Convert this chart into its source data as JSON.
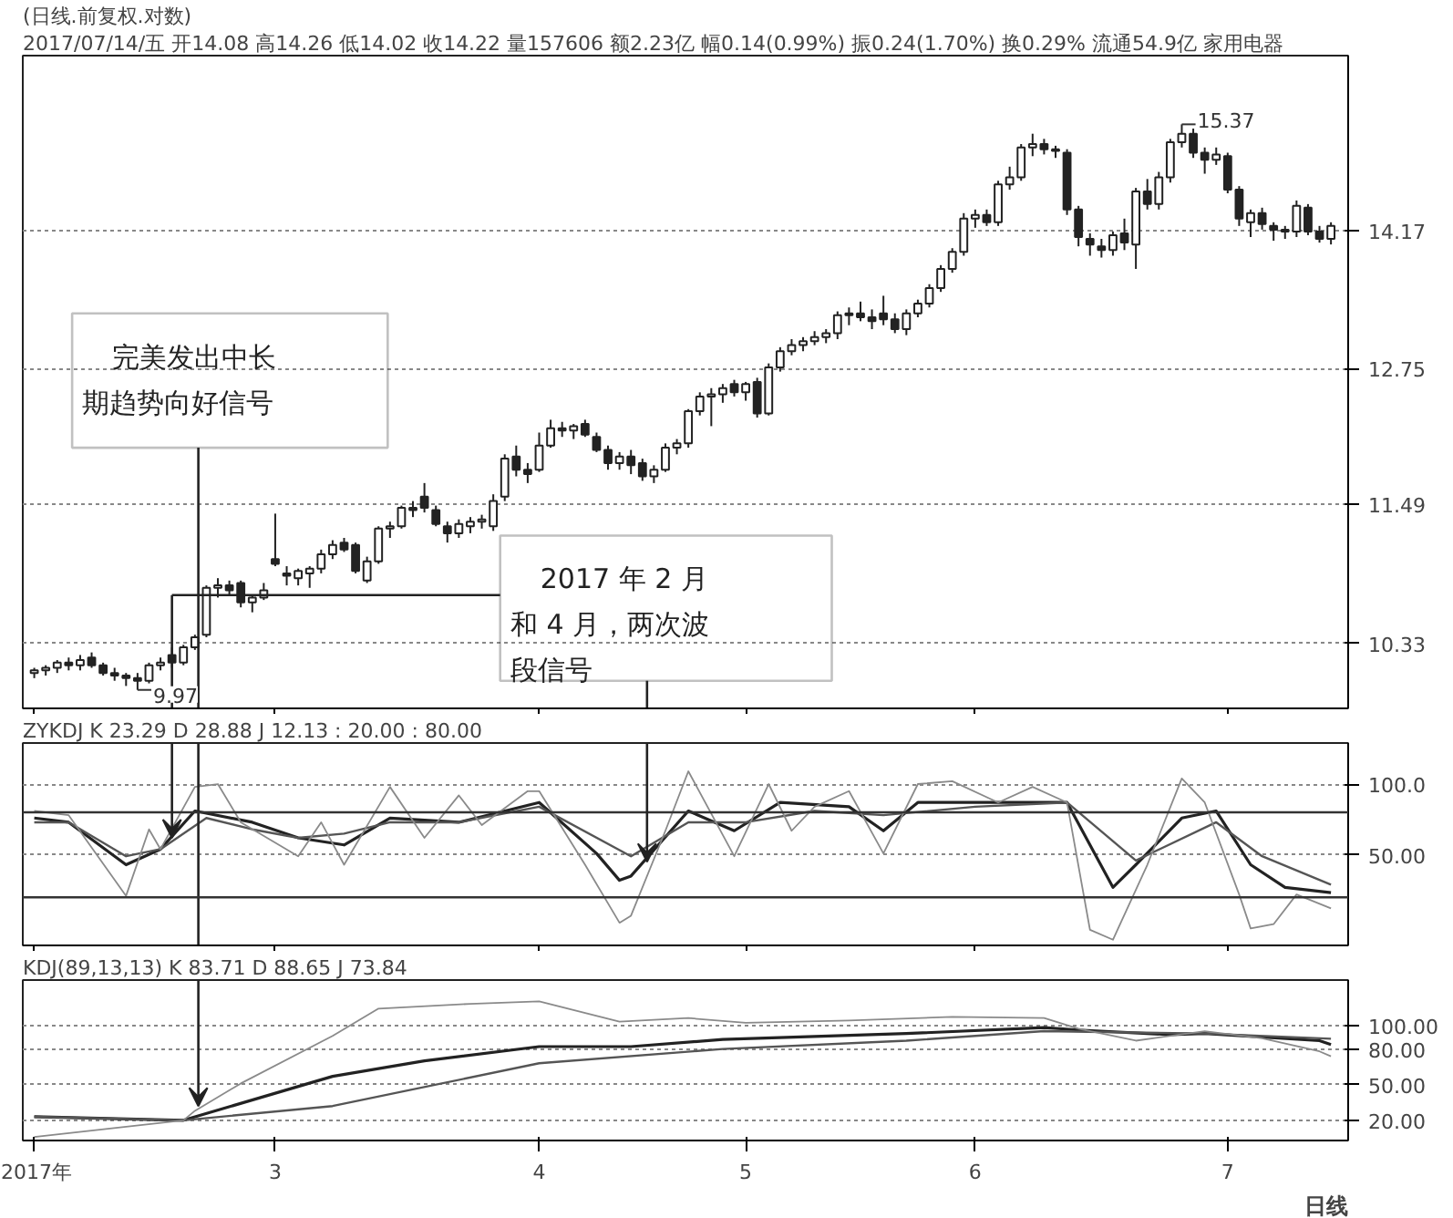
{
  "chart_data": [
    {
      "type": "candlestick",
      "title": "(日线.前复权.对数)",
      "subtitle": "2017/07/14/五 开14.08 高14.26 低14.02 收14.22 量157606 额2.23亿 幅0.14(0.99%) 振0.24(1.70%) 换0.29% 流通54.9亿 家用电器",
      "categories": [
        "2017年",
        null,
        null,
        null,
        null,
        null,
        null,
        null,
        null,
        null,
        null,
        null,
        null,
        null,
        null,
        null,
        null,
        null,
        null,
        null,
        null,
        "3",
        null,
        null,
        null,
        null,
        null,
        null,
        null,
        null,
        null,
        null,
        null,
        null,
        null,
        null,
        null,
        null,
        null,
        null,
        null,
        null,
        null,
        null,
        "4",
        null,
        null,
        null,
        null,
        null,
        null,
        null,
        null,
        null,
        null,
        null,
        null,
        null,
        null,
        null,
        null,
        null,
        "5",
        null,
        null,
        null,
        null,
        null,
        null,
        null,
        null,
        null,
        null,
        null,
        null,
        null,
        null,
        null,
        null,
        null,
        null,
        null,
        "6",
        null,
        null,
        null,
        null,
        null,
        null,
        null,
        null,
        null,
        null,
        null,
        null,
        null,
        null,
        null,
        null,
        null,
        null,
        null,
        null,
        null,
        "7",
        null,
        null,
        null,
        null,
        null,
        null,
        null,
        null,
        null
      ],
      "ohlc": [
        [
          10.1,
          10.14,
          10.06,
          10.12
        ],
        [
          10.12,
          10.16,
          10.08,
          10.14
        ],
        [
          10.14,
          10.2,
          10.1,
          10.18
        ],
        [
          10.18,
          10.22,
          10.12,
          10.16
        ],
        [
          10.16,
          10.24,
          10.12,
          10.2
        ],
        [
          10.22,
          10.26,
          10.14,
          10.16
        ],
        [
          10.16,
          10.18,
          10.08,
          10.1
        ],
        [
          10.1,
          10.14,
          10.04,
          10.08
        ],
        [
          10.08,
          10.1,
          10.0,
          10.06
        ],
        [
          10.06,
          10.1,
          9.97,
          10.04
        ],
        [
          10.04,
          10.18,
          10.02,
          10.16
        ],
        [
          10.16,
          10.22,
          10.12,
          10.18
        ],
        [
          10.24,
          10.3,
          10.14,
          10.18
        ],
        [
          10.18,
          10.32,
          10.16,
          10.3
        ],
        [
          10.3,
          10.4,
          10.28,
          10.38
        ],
        [
          10.4,
          10.8,
          10.38,
          10.78
        ],
        [
          10.78,
          10.86,
          10.7,
          10.8
        ],
        [
          10.8,
          10.84,
          10.72,
          10.76
        ],
        [
          10.82,
          10.84,
          10.62,
          10.66
        ],
        [
          10.66,
          10.72,
          10.58,
          10.7
        ],
        [
          10.7,
          10.82,
          10.68,
          10.76
        ],
        [
          11.02,
          11.41,
          10.96,
          10.98
        ],
        [
          10.9,
          10.96,
          10.8,
          10.88
        ],
        [
          10.86,
          10.94,
          10.8,
          10.92
        ],
        [
          10.9,
          10.96,
          10.78,
          10.94
        ],
        [
          10.94,
          11.1,
          10.9,
          11.06
        ],
        [
          11.06,
          11.18,
          11.02,
          11.14
        ],
        [
          11.16,
          11.2,
          11.08,
          11.1
        ],
        [
          11.14,
          11.16,
          10.9,
          10.92
        ],
        [
          10.84,
          11.04,
          10.82,
          11.0
        ],
        [
          11.0,
          11.3,
          10.98,
          11.28
        ],
        [
          11.28,
          11.34,
          11.2,
          11.3
        ],
        [
          11.3,
          11.48,
          11.28,
          11.46
        ],
        [
          11.46,
          11.52,
          11.38,
          11.44
        ],
        [
          11.56,
          11.68,
          11.42,
          11.46
        ],
        [
          11.44,
          11.48,
          11.3,
          11.32
        ],
        [
          11.3,
          11.34,
          11.16,
          11.24
        ],
        [
          11.24,
          11.36,
          11.2,
          11.32
        ],
        [
          11.3,
          11.38,
          11.24,
          11.34
        ],
        [
          11.34,
          11.4,
          11.28,
          11.36
        ],
        [
          11.3,
          11.58,
          11.26,
          11.52
        ],
        [
          11.56,
          11.94,
          11.52,
          11.9
        ],
        [
          11.92,
          12.02,
          11.74,
          11.8
        ],
        [
          11.8,
          11.86,
          11.68,
          11.76
        ],
        [
          11.8,
          12.14,
          11.78,
          12.02
        ],
        [
          12.02,
          12.26,
          12.0,
          12.18
        ],
        [
          12.18,
          12.24,
          12.1,
          12.16
        ],
        [
          12.16,
          12.22,
          12.08,
          12.2
        ],
        [
          12.22,
          12.26,
          12.1,
          12.12
        ],
        [
          12.1,
          12.14,
          11.96,
          11.98
        ],
        [
          11.98,
          12.02,
          11.8,
          11.86
        ],
        [
          11.86,
          11.96,
          11.8,
          11.92
        ],
        [
          11.92,
          11.98,
          11.76,
          11.84
        ],
        [
          11.86,
          11.9,
          11.7,
          11.74
        ],
        [
          11.74,
          11.84,
          11.68,
          11.8
        ],
        [
          11.8,
          12.04,
          11.78,
          12.0
        ],
        [
          12.0,
          12.08,
          11.94,
          12.04
        ],
        [
          12.04,
          12.36,
          12.0,
          12.34
        ],
        [
          12.34,
          12.52,
          12.3,
          12.48
        ],
        [
          12.48,
          12.56,
          12.2,
          12.5
        ],
        [
          12.5,
          12.6,
          12.42,
          12.56
        ],
        [
          12.6,
          12.64,
          12.48,
          12.52
        ],
        [
          12.52,
          12.62,
          12.44,
          12.6
        ],
        [
          12.62,
          12.66,
          12.28,
          12.32
        ],
        [
          12.32,
          12.8,
          12.3,
          12.76
        ],
        [
          12.76,
          12.96,
          12.72,
          12.92
        ],
        [
          12.92,
          13.04,
          12.88,
          12.98
        ],
        [
          12.98,
          13.06,
          12.92,
          13.02
        ],
        [
          13.02,
          13.12,
          12.98,
          13.06
        ],
        [
          13.06,
          13.14,
          13.0,
          13.1
        ],
        [
          13.1,
          13.32,
          13.04,
          13.28
        ],
        [
          13.28,
          13.36,
          13.18,
          13.3
        ],
        [
          13.3,
          13.42,
          13.22,
          13.26
        ],
        [
          13.26,
          13.34,
          13.14,
          13.22
        ],
        [
          13.3,
          13.48,
          13.18,
          13.24
        ],
        [
          13.24,
          13.3,
          13.1,
          13.14
        ],
        [
          13.14,
          13.34,
          13.08,
          13.3
        ],
        [
          13.3,
          13.44,
          13.26,
          13.4
        ],
        [
          13.4,
          13.6,
          13.36,
          13.56
        ],
        [
          13.56,
          13.8,
          13.52,
          13.76
        ],
        [
          13.76,
          13.98,
          13.72,
          13.94
        ],
        [
          13.94,
          14.36,
          13.9,
          14.3
        ],
        [
          14.3,
          14.4,
          14.2,
          14.34
        ],
        [
          14.34,
          14.4,
          14.22,
          14.26
        ],
        [
          14.26,
          14.72,
          14.22,
          14.68
        ],
        [
          14.68,
          14.88,
          14.62,
          14.76
        ],
        [
          14.76,
          15.14,
          14.72,
          15.1
        ],
        [
          15.1,
          15.26,
          15.0,
          15.14
        ],
        [
          15.14,
          15.2,
          15.02,
          15.08
        ],
        [
          15.08,
          15.12,
          14.98,
          15.06
        ],
        [
          15.04,
          15.08,
          14.34,
          14.4
        ],
        [
          14.4,
          14.44,
          14.0,
          14.1
        ],
        [
          14.08,
          14.14,
          13.9,
          14.02
        ],
        [
          14.0,
          14.08,
          13.88,
          13.96
        ],
        [
          13.96,
          14.16,
          13.9,
          14.12
        ],
        [
          14.14,
          14.3,
          13.96,
          14.04
        ],
        [
          14.02,
          14.64,
          13.76,
          14.6
        ],
        [
          14.6,
          14.74,
          14.4,
          14.46
        ],
        [
          14.46,
          14.82,
          14.4,
          14.76
        ],
        [
          14.76,
          15.2,
          14.7,
          15.16
        ],
        [
          15.16,
          15.37,
          15.1,
          15.26
        ],
        [
          15.26,
          15.32,
          14.98,
          15.04
        ],
        [
          15.04,
          15.1,
          14.8,
          14.96
        ],
        [
          14.96,
          15.1,
          14.9,
          15.02
        ],
        [
          15.0,
          15.04,
          14.58,
          14.62
        ],
        [
          14.62,
          14.66,
          14.22,
          14.3
        ],
        [
          14.26,
          14.4,
          14.1,
          14.36
        ],
        [
          14.36,
          14.42,
          14.18,
          14.24
        ],
        [
          14.22,
          14.26,
          14.06,
          14.18
        ],
        [
          14.18,
          14.22,
          14.08,
          14.16
        ],
        [
          14.16,
          14.5,
          14.1,
          14.44
        ],
        [
          14.42,
          14.46,
          14.12,
          14.16
        ],
        [
          14.16,
          14.22,
          14.04,
          14.08
        ],
        [
          14.08,
          14.26,
          14.02,
          14.22
        ]
      ],
      "ylim": [
        9.83,
        16.2
      ],
      "yticks": [
        10.33,
        11.49,
        12.75,
        14.17
      ],
      "log": true,
      "grid": "y",
      "tick_labels": "y",
      "annotations": [
        "完美发出中长期趋势向好信号",
        "2017 年 2 月和 4 月，两次波段信号",
        "9.97",
        "15.37"
      ]
    },
    {
      "type": "line",
      "title": "ZYKDJ  K 23.29  D 28.88  J 12.13    : 20.00  : 80.00",
      "categories": [
        "2017年",
        null,
        null,
        null,
        null,
        null,
        null,
        null,
        null,
        null,
        null,
        null,
        null,
        null,
        null,
        null,
        null,
        null,
        null,
        null,
        null,
        "3",
        null,
        null,
        null,
        null,
        null,
        null,
        null,
        null,
        null,
        null,
        null,
        null,
        null,
        null,
        null,
        null,
        null,
        null,
        null,
        null,
        null,
        null,
        "4",
        null,
        null,
        null,
        null,
        null,
        null,
        null,
        null,
        null,
        null,
        null,
        null,
        null,
        null,
        null,
        null,
        null,
        "5",
        null,
        null,
        null,
        null,
        null,
        null,
        null,
        null,
        null,
        null,
        null,
        null,
        null,
        null,
        null,
        null,
        null,
        null,
        null,
        "6",
        null,
        null,
        null,
        null,
        null,
        null,
        null,
        null,
        null,
        null,
        null,
        null,
        null,
        null,
        null,
        null,
        null,
        null,
        null,
        null,
        null,
        "7",
        null,
        null,
        null,
        null,
        null,
        null,
        null,
        null,
        null
      ],
      "series": [
        {
          "color": "#222222",
          "values": [
            76,
            null,
            null,
            73,
            null,
            null,
            null,
            null,
            43,
            null,
            null,
            54,
            null,
            null,
            81,
            null,
            null,
            null,
            null,
            73,
            null,
            null,
            null,
            62,
            null,
            null,
            null,
            57,
            null,
            null,
            null,
            76,
            null,
            null,
            null,
            null,
            null,
            73,
            null,
            null,
            null,
            null,
            null,
            null,
            87,
            null,
            null,
            null,
            null,
            51,
            null,
            32,
            35,
            null,
            null,
            null,
            null,
            81,
            null,
            null,
            null,
            67,
            null,
            null,
            null,
            87,
            null,
            null,
            null,
            null,
            null,
            84,
            null,
            null,
            67,
            null,
            null,
            87,
            null,
            null,
            null,
            null,
            null,
            null,
            null,
            null,
            null,
            null,
            null,
            null,
            87,
            null,
            null,
            null,
            27,
            null,
            43,
            null,
            null,
            null,
            76,
            null,
            null,
            81,
            null,
            null,
            43,
            null,
            null,
            27,
            null,
            null,
            null,
            23.29
          ]
        },
        {
          "color": "#555555",
          "values": [
            73,
            null,
            null,
            73,
            null,
            null,
            null,
            null,
            49,
            null,
            null,
            54,
            null,
            null,
            null,
            76,
            null,
            null,
            null,
            68,
            null,
            null,
            null,
            62,
            null,
            null,
            null,
            65,
            null,
            null,
            null,
            73,
            null,
            null,
            null,
            null,
            null,
            73,
            null,
            null,
            null,
            null,
            null,
            null,
            84,
            null,
            null,
            null,
            null,
            null,
            null,
            null,
            49,
            null,
            null,
            null,
            null,
            73,
            null,
            null,
            null,
            null,
            73,
            null,
            null,
            null,
            null,
            null,
            81,
            null,
            null,
            null,
            null,
            null,
            78,
            null,
            null,
            null,
            null,
            null,
            null,
            null,
            84,
            null,
            null,
            null,
            null,
            null,
            null,
            null,
            87,
            null,
            null,
            null,
            null,
            null,
            46,
            null,
            null,
            null,
            null,
            null,
            null,
            73,
            null,
            null,
            null,
            49,
            null,
            null,
            null,
            null,
            null,
            28.88
          ]
        },
        {
          "color": "#8a8a8a",
          "values": [
            81,
            null,
            null,
            78,
            null,
            null,
            null,
            null,
            21,
            null,
            68,
            54,
            null,
            null,
            98,
            null,
            100,
            null,
            73,
            null,
            null,
            null,
            null,
            49,
            null,
            73,
            null,
            43,
            null,
            null,
            null,
            98,
            null,
            null,
            62,
            null,
            null,
            92,
            null,
            71,
            null,
            null,
            null,
            95,
            95,
            null,
            null,
            null,
            43,
            null,
            null,
            2,
            7,
            null,
            null,
            67,
            null,
            109,
            null,
            null,
            null,
            49,
            null,
            null,
            100,
            null,
            67,
            null,
            84,
            null,
            null,
            95,
            null,
            null,
            51,
            null,
            null,
            100,
            null,
            null,
            102,
            null,
            null,
            null,
            87,
            null,
            null,
            98,
            null,
            null,
            87,
            null,
            -3,
            null,
            -10,
            null,
            null,
            43,
            null,
            null,
            104,
            null,
            87,
            null,
            null,
            22,
            -2,
            null,
            1,
            null,
            22,
            null,
            null,
            12.13
          ]
        }
      ],
      "ylim": [
        -14,
        129
      ],
      "yticks": [
        {
          "value": 100,
          "label": "100.0"
        },
        {
          "value": 50,
          "label": "50.00"
        }
      ],
      "ref_lines": [
        {
          "axis": "y",
          "value": 20,
          "color": "#333333"
        },
        {
          "axis": "y",
          "value": 80,
          "color": "#333333"
        }
      ],
      "grid": "y",
      "tick_labels": "y"
    },
    {
      "type": "line",
      "title": "KDJ(89,13,13)  K 83.71  D 88.65  J 73.84",
      "categories": [
        "2017年",
        null,
        null,
        null,
        null,
        null,
        null,
        null,
        null,
        null,
        null,
        null,
        null,
        null,
        null,
        null,
        null,
        null,
        null,
        null,
        null,
        "3",
        null,
        null,
        null,
        null,
        null,
        null,
        null,
        null,
        null,
        null,
        null,
        null,
        null,
        null,
        null,
        null,
        null,
        null,
        null,
        null,
        null,
        null,
        "4",
        null,
        null,
        null,
        null,
        null,
        null,
        null,
        null,
        null,
        null,
        null,
        null,
        null,
        null,
        null,
        null,
        null,
        "5",
        null,
        null,
        null,
        null,
        null,
        null,
        null,
        null,
        null,
        null,
        null,
        null,
        null,
        null,
        null,
        null,
        null,
        null,
        null,
        "6",
        null,
        null,
        null,
        null,
        null,
        null,
        null,
        null,
        null,
        null,
        null,
        null,
        null,
        null,
        null,
        null,
        null,
        null,
        null,
        null,
        null,
        "7",
        null,
        null,
        null,
        null,
        null,
        null,
        null,
        null,
        null
      ],
      "series": [
        {
          "color": "#222222",
          "values": [
            23,
            null,
            null,
            null,
            null,
            null,
            null,
            null,
            null,
            null,
            null,
            null,
            null,
            20,
            null,
            null,
            null,
            null,
            null,
            null,
            null,
            null,
            null,
            null,
            null,
            null,
            57,
            null,
            null,
            null,
            null,
            null,
            null,
            null,
            70,
            null,
            null,
            null,
            null,
            null,
            null,
            null,
            null,
            null,
            82,
            null,
            null,
            null,
            null,
            null,
            null,
            null,
            82,
            null,
            null,
            null,
            null,
            null,
            null,
            null,
            88,
            null,
            null,
            null,
            null,
            null,
            null,
            null,
            null,
            null,
            null,
            null,
            null,
            null,
            null,
            null,
            93,
            null,
            null,
            null,
            null,
            null,
            null,
            null,
            null,
            null,
            null,
            null,
            98,
            null,
            null,
            96,
            null,
            null,
            null,
            null,
            null,
            null,
            null,
            92,
            null,
            null,
            93,
            null,
            null,
            null,
            null,
            null,
            null,
            null,
            null,
            null,
            87,
            83.71
          ]
        },
        {
          "color": "#555555",
          "values": [
            23,
            null,
            null,
            null,
            null,
            null,
            null,
            null,
            null,
            null,
            null,
            null,
            null,
            20,
            null,
            null,
            null,
            null,
            null,
            null,
            null,
            null,
            null,
            null,
            null,
            null,
            32,
            null,
            null,
            null,
            null,
            null,
            null,
            null,
            null,
            null,
            null,
            null,
            null,
            null,
            null,
            null,
            null,
            null,
            68,
            null,
            null,
            null,
            null,
            null,
            null,
            null,
            null,
            null,
            null,
            null,
            null,
            null,
            null,
            null,
            80,
            null,
            null,
            null,
            null,
            null,
            null,
            null,
            null,
            null,
            null,
            null,
            null,
            null,
            null,
            null,
            87,
            null,
            null,
            null,
            null,
            null,
            null,
            null,
            null,
            null,
            null,
            null,
            95,
            null,
            null,
            null,
            null,
            null,
            null,
            null,
            null,
            null,
            null,
            null,
            null,
            null,
            93,
            null,
            null,
            null,
            null,
            null,
            null,
            null,
            null,
            null,
            null,
            88.65
          ]
        },
        {
          "color": "#8a8a8a",
          "values": [
            6,
            null,
            null,
            null,
            null,
            null,
            null,
            null,
            null,
            null,
            null,
            null,
            null,
            20,
            28,
            null,
            null,
            null,
            51,
            null,
            null,
            null,
            null,
            null,
            null,
            null,
            91,
            null,
            null,
            null,
            114,
            null,
            null,
            null,
            null,
            null,
            null,
            null,
            118,
            null,
            null,
            null,
            null,
            null,
            120,
            null,
            null,
            null,
            null,
            null,
            null,
            103,
            null,
            null,
            null,
            null,
            null,
            106,
            null,
            null,
            null,
            null,
            102,
            null,
            null,
            null,
            null,
            null,
            null,
            null,
            null,
            104,
            null,
            null,
            null,
            null,
            null,
            null,
            null,
            null,
            107,
            null,
            null,
            null,
            null,
            null,
            null,
            null,
            106,
            null,
            null,
            97,
            null,
            null,
            null,
            null,
            87,
            null,
            null,
            null,
            null,
            null,
            95,
            null,
            null,
            null,
            null,
            89,
            null,
            null,
            null,
            null,
            78,
            73.84
          ]
        }
      ],
      "ylim": [
        3,
        138
      ],
      "yticks": [
        {
          "value": 100,
          "label": "100.00"
        },
        {
          "value": 80,
          "label": "80.00"
        },
        {
          "value": 50,
          "label": "50.00"
        },
        {
          "value": 20,
          "label": "20.00"
        }
      ],
      "grid": "y",
      "annotations": [
        "日线"
      ]
    }
  ]
}
